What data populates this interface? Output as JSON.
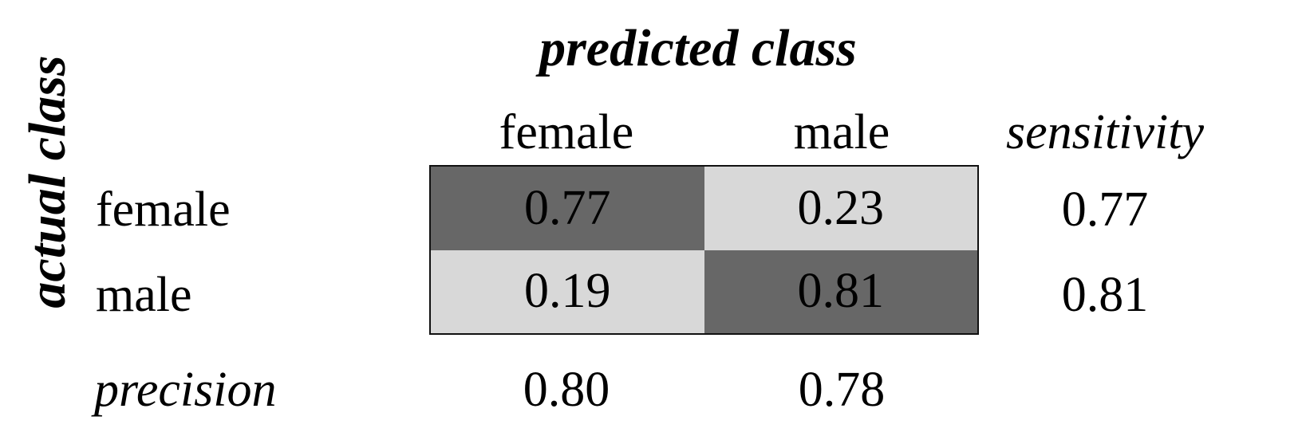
{
  "chart_data": {
    "type": "heatmap",
    "title": "predicted class",
    "ylabel": "actual class",
    "columns": [
      "female",
      "male"
    ],
    "rows": [
      "female",
      "male"
    ],
    "values": [
      [
        0.77,
        0.23
      ],
      [
        0.19,
        0.81
      ]
    ],
    "value_labels": [
      [
        "0.77",
        "0.23"
      ],
      [
        "0.19",
        "0.81"
      ]
    ],
    "sensitivity_label": "sensitivity",
    "sensitivity": [
      "0.77",
      "0.81"
    ],
    "precision_label": "precision",
    "precision": [
      "0.80",
      "0.78"
    ],
    "colors": {
      "dark": "#676767",
      "light": "#d8d8d8",
      "border": "#111111"
    }
  }
}
